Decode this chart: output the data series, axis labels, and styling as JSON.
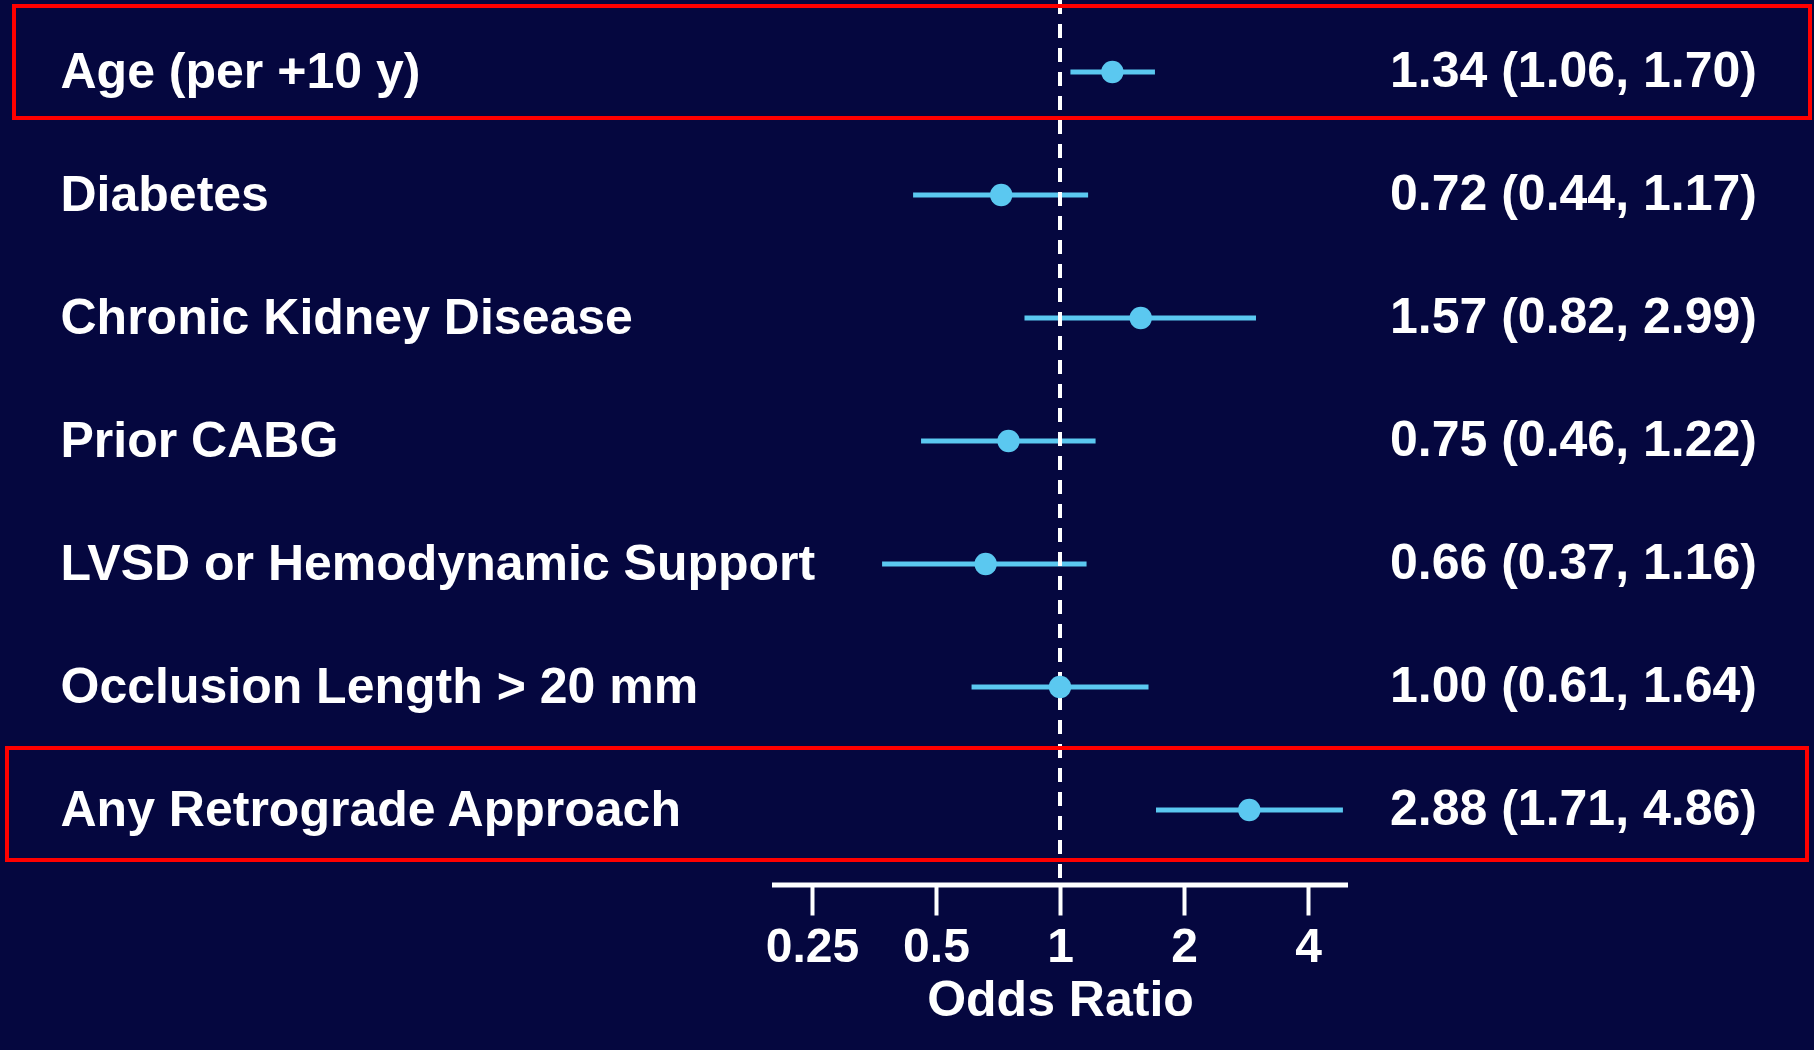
{
  "chart_data": {
    "type": "scatter",
    "orientation": "horizontal",
    "log": "x",
    "xlabel": "Odds Ratio",
    "categories": [
      "Age (per +10 y)",
      "Diabetes",
      "Chronic Kidney Disease",
      "Prior CABG",
      "LVSD or Hemodynamic Support",
      "Occlusion Length  > 20 mm",
      "Any Retrograde Approach"
    ],
    "values": [
      1.34,
      0.72,
      1.57,
      0.75,
      0.66,
      1.0,
      2.88
    ],
    "errors": [
      [
        1.06,
        1.7
      ],
      [
        0.44,
        1.17
      ],
      [
        0.82,
        2.99
      ],
      [
        0.46,
        1.22
      ],
      [
        0.37,
        1.16
      ],
      [
        0.61,
        1.64
      ],
      [
        1.71,
        4.86
      ]
    ],
    "value_labels": [
      "1.34 (1.06, 1.70)",
      "0.72 (0.44, 1.17)",
      "1.57 (0.82, 2.99)",
      "0.75 (0.46, 1.22)",
      "0.66 (0.37, 1.16)",
      "1.00 (0.61, 1.64)",
      "2.88 (1.71, 4.86)"
    ],
    "color": "#5bc8f0",
    "marker": "circle",
    "xlim": [
      0.2,
      5
    ],
    "xticks": [
      0.25,
      0.5,
      1,
      2,
      4
    ],
    "ref_lines": [
      {
        "axis": "x",
        "value": 1,
        "color": "#ffffff",
        "line_style": "dashed"
      }
    ],
    "grid": false
  }
}
